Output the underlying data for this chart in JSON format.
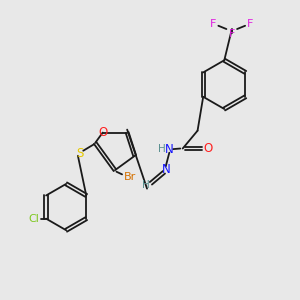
{
  "bg_color": "#e8e8e8",
  "bond_color": "#1a1a1a",
  "colors": {
    "N": "#1414ff",
    "O": "#ff2020",
    "S": "#e6c800",
    "Br": "#d47000",
    "Cl": "#7ec820",
    "F": "#e020e0",
    "H": "#5a9090",
    "C": "#1a1a1a"
  },
  "font_size": 7.5
}
